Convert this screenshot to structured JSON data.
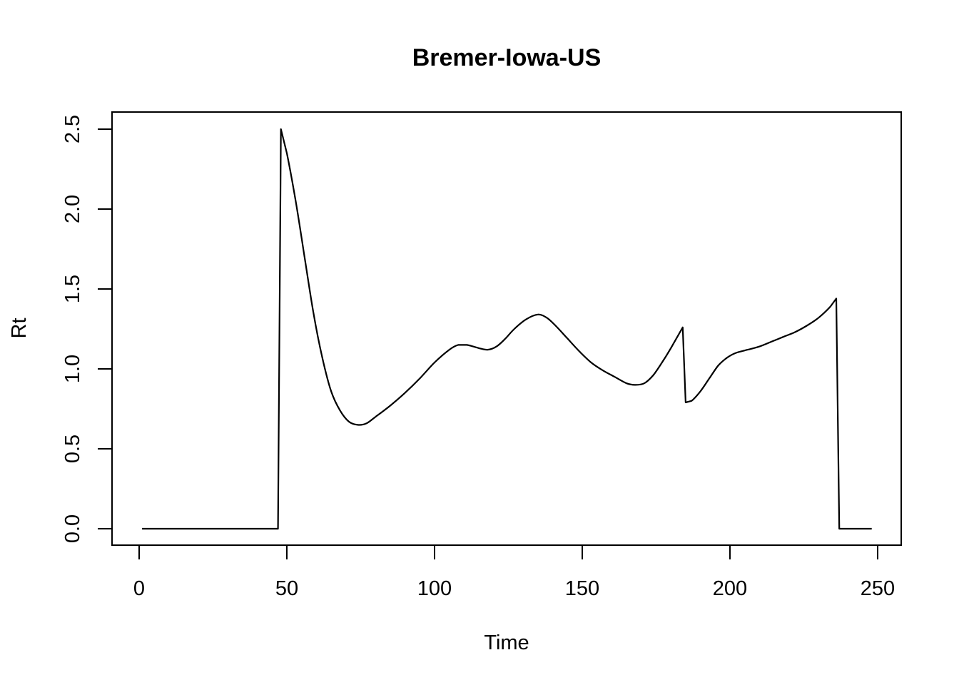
{
  "chart_data": {
    "type": "line",
    "title": "Bremer-Iowa-US",
    "xlabel": "Time",
    "ylabel": "Rt",
    "xlim": [
      1,
      248
    ],
    "ylim": [
      0,
      2.5
    ],
    "x_ticks": [
      0,
      50,
      100,
      150,
      200,
      250
    ],
    "y_ticks": [
      0.0,
      0.5,
      1.0,
      1.5,
      2.0,
      2.5
    ],
    "x_tick_labels": [
      "0",
      "50",
      "100",
      "150",
      "200",
      "250"
    ],
    "y_tick_labels": [
      "0.0",
      "0.5",
      "1.0",
      "1.5",
      "2.0",
      "2.5"
    ],
    "grid": false,
    "line_color": "#000000",
    "series": [
      {
        "x": [
          1,
          47,
          48,
          50,
          53,
          56,
          59,
          62,
          65,
          68,
          71,
          74,
          77,
          80,
          85,
          90,
          95,
          100,
          105,
          108,
          111,
          115,
          118,
          121,
          124,
          127,
          131,
          135,
          138,
          141,
          145,
          149,
          153,
          157,
          161,
          165,
          168,
          171,
          174,
          177,
          180,
          184,
          185,
          187,
          190,
          193,
          196,
          199,
          202,
          206,
          210,
          214,
          218,
          222,
          226,
          230,
          234,
          236,
          237,
          248
        ],
        "y": [
          0,
          0,
          2.5,
          2.35,
          2.05,
          1.7,
          1.35,
          1.07,
          0.86,
          0.74,
          0.67,
          0.65,
          0.66,
          0.7,
          0.77,
          0.85,
          0.94,
          1.04,
          1.12,
          1.15,
          1.15,
          1.13,
          1.12,
          1.14,
          1.19,
          1.25,
          1.31,
          1.34,
          1.32,
          1.27,
          1.19,
          1.11,
          1.04,
          0.99,
          0.95,
          0.91,
          0.9,
          0.91,
          0.96,
          1.04,
          1.13,
          1.26,
          0.79,
          0.8,
          0.86,
          0.94,
          1.02,
          1.07,
          1.1,
          1.12,
          1.14,
          1.17,
          1.2,
          1.23,
          1.27,
          1.32,
          1.39,
          1.44,
          0.0,
          0.0
        ]
      }
    ]
  }
}
